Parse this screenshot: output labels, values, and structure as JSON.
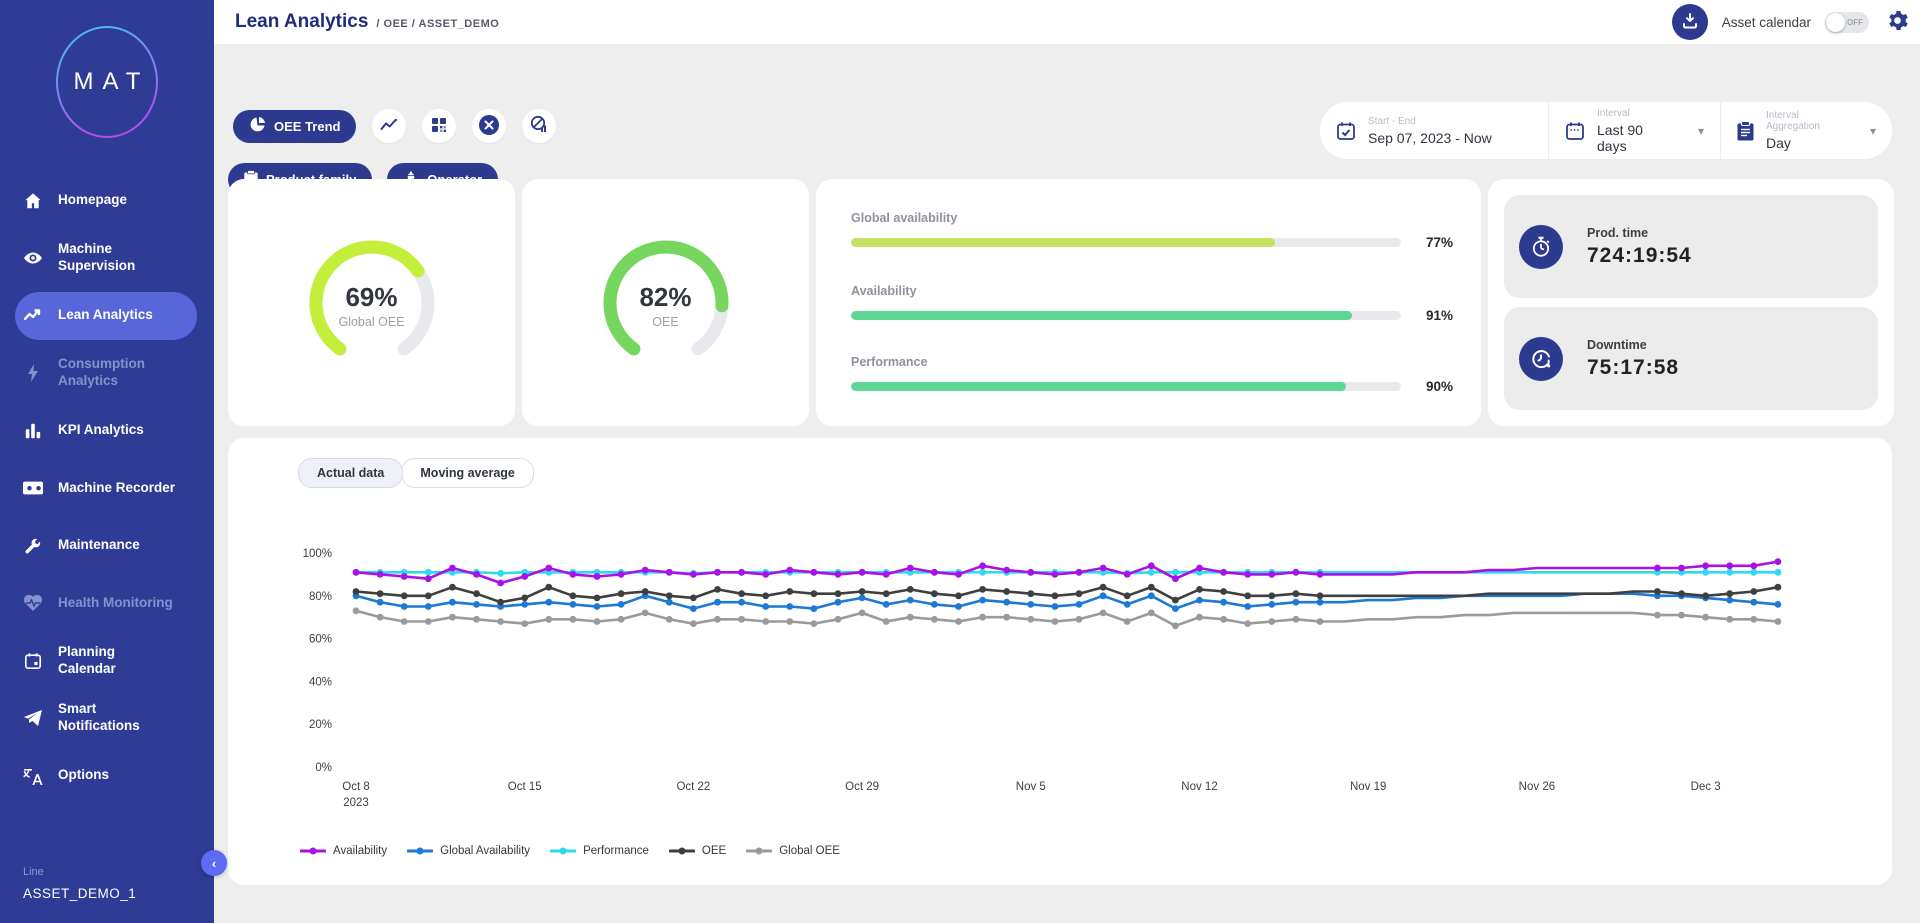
{
  "colors": {
    "sidebar_bg": "#2e3c96",
    "active_item": "#5766d9",
    "accent_navy": "#2c3a90",
    "page_bg": "#eeeeee",
    "collapse_btn": "#5b6cf0",
    "gauge_lime": "#c3ee3a",
    "gauge_green": "#77d65e",
    "gauge_track": "#e8e9ec",
    "bar_lime": "#c3e362",
    "bar_mint": "#5ed792"
  },
  "header": {
    "title": "Lean Analytics",
    "breadcrumb": "/ OEE / ASSET_DEMO",
    "asset_calendar_label": "Asset calendar",
    "asset_calendar_state": "OFF",
    "download_icon": "download-icon",
    "gear_icon": "gear-icon"
  },
  "sidebar": {
    "logo": "MAT",
    "items": [
      {
        "label": "Homepage",
        "icon": "home-icon",
        "state": "normal"
      },
      {
        "label": "Machine Supervision",
        "icon": "eye-icon",
        "state": "normal"
      },
      {
        "label": "Lean Analytics",
        "icon": "trend-icon",
        "state": "active"
      },
      {
        "label": "Consumption Analytics",
        "icon": "bolt-icon",
        "state": "muted"
      },
      {
        "label": "KPI Analytics",
        "icon": "bar-chart-icon",
        "state": "normal"
      },
      {
        "label": "Machine Recorder",
        "icon": "recorder-icon",
        "state": "normal"
      },
      {
        "label": "Maintenance",
        "icon": "wrench-icon",
        "state": "normal"
      },
      {
        "label": "Health Monitoring",
        "icon": "heart-pulse-icon",
        "state": "muted"
      },
      {
        "label": "Planning Calendar",
        "icon": "calendar-icon",
        "state": "normal"
      },
      {
        "label": "Smart Notifications",
        "icon": "send-icon",
        "state": "normal"
      },
      {
        "label": "Options",
        "icon": "translate-icon",
        "state": "normal"
      }
    ],
    "footer": {
      "line_label": "Line",
      "asset_name": "ASSET_DEMO_1"
    }
  },
  "filters": {
    "primary_button": {
      "label": "OEE Trend",
      "icon": "pie-chart-icon"
    },
    "icon_buttons": [
      {
        "icon": "trend-line-icon"
      },
      {
        "icon": "qr-grid-icon"
      },
      {
        "icon": "clear-circle-icon"
      },
      {
        "icon": "chart-disabled-icon"
      }
    ],
    "secondary_buttons": [
      {
        "label": "Product family",
        "icon": "clipboard-icon"
      },
      {
        "label": "Operator",
        "icon": "operator-icon"
      }
    ],
    "date_range": {
      "label": "Start - End",
      "value": "Sep 07, 2023 - Now",
      "icon": "calendar-check-icon"
    },
    "interval": {
      "label": "Interval",
      "value": "Last 90 days",
      "icon": "calendar-days-icon"
    },
    "aggregation": {
      "label": "Interval Aggregation",
      "value": "Day",
      "icon": "clipboard-list-icon"
    }
  },
  "kpis": {
    "gauges": [
      {
        "value": "69%",
        "pct": 69,
        "label": "Global OEE",
        "color": "#c3ee3a"
      },
      {
        "value": "82%",
        "pct": 82,
        "label": "OEE",
        "color": "#77d65e"
      }
    ],
    "bars": [
      {
        "label": "Global availability",
        "pct": 77,
        "display": "77%",
        "color": "#c3e362"
      },
      {
        "label": "Availability",
        "pct": 91,
        "display": "91%",
        "color": "#5ed792"
      },
      {
        "label": "Performance",
        "pct": 90,
        "display": "90%",
        "color": "#5ed792"
      }
    ],
    "times": [
      {
        "label": "Prod. time",
        "value": "724:19:54",
        "icon": "stopwatch-icon"
      },
      {
        "label": "Downtime",
        "value": "75:17:58",
        "icon": "downtime-clock-icon"
      }
    ]
  },
  "chart": {
    "tabs": [
      {
        "label": "Actual data",
        "active": true
      },
      {
        "label": "Moving average",
        "active": false
      }
    ]
  },
  "chart_data": {
    "type": "line",
    "x_unit": "day",
    "x_start": "Oct 8, 2023",
    "ylim": [
      0,
      100
    ],
    "y_ticks": [
      "0%",
      "20%",
      "40%",
      "60%",
      "80%",
      "100%"
    ],
    "grid": false,
    "legend_position": "bottom-left",
    "x_ticks": [
      {
        "index": 0,
        "label": "Oct 8",
        "sublabel": "2023"
      },
      {
        "index": 7,
        "label": "Oct 15"
      },
      {
        "index": 14,
        "label": "Oct 22"
      },
      {
        "index": 21,
        "label": "Oct 29"
      },
      {
        "index": 28,
        "label": "Nov 5"
      },
      {
        "index": 35,
        "label": "Nov 12"
      },
      {
        "index": 42,
        "label": "Nov 19"
      },
      {
        "index": 49,
        "label": "Nov 26"
      },
      {
        "index": 56,
        "label": "Dec 3"
      }
    ],
    "marker_hidden_range": {
      "from": 41,
      "to": 53
    },
    "series": [
      {
        "name": "Availability",
        "color": "#a911e8",
        "values": [
          91,
          90,
          89,
          88,
          93,
          90,
          86,
          89,
          93,
          90,
          89,
          90,
          92,
          91,
          90,
          91,
          91,
          90,
          92,
          91,
          90,
          91,
          90,
          93,
          91,
          90,
          94,
          92,
          91,
          90,
          91,
          93,
          90,
          94,
          88,
          93,
          91,
          90,
          90,
          91,
          90,
          90,
          90,
          90,
          91,
          91,
          91,
          92,
          92,
          93,
          93,
          93,
          93,
          93,
          93,
          93,
          94,
          94,
          94,
          96
        ]
      },
      {
        "name": "Global Availability",
        "color": "#1d79d4",
        "values": [
          80,
          77,
          75,
          75,
          77,
          76,
          75,
          76,
          77,
          76,
          75,
          76,
          80,
          77,
          74,
          77,
          77,
          75,
          75,
          74,
          77,
          79,
          76,
          78,
          76,
          75,
          78,
          77,
          76,
          75,
          76,
          80,
          76,
          80,
          74,
          78,
          77,
          75,
          76,
          77,
          77,
          77,
          78,
          78,
          79,
          79,
          80,
          80,
          80,
          80,
          80,
          81,
          81,
          81,
          80,
          80,
          79,
          78,
          77,
          76
        ]
      },
      {
        "name": "Performance",
        "color": "#2fd9f0",
        "values": [
          91,
          91,
          91,
          91,
          91,
          91,
          90.5,
          91,
          91,
          91,
          91,
          91,
          91,
          91,
          90.5,
          91,
          91,
          91,
          91,
          91,
          91,
          91,
          91,
          91,
          91,
          91,
          91,
          91,
          91,
          91,
          91,
          91,
          90.5,
          91,
          91,
          91,
          91,
          91,
          91,
          91,
          91,
          91,
          91,
          91,
          91,
          91,
          91,
          91,
          91,
          91,
          91,
          91,
          91,
          91,
          91,
          91,
          91,
          91,
          91,
          91
        ]
      },
      {
        "name": "OEE",
        "color": "#3f3f3f",
        "values": [
          82,
          81,
          80,
          80,
          84,
          81,
          77,
          79,
          84,
          80,
          79,
          81,
          82,
          80,
          79,
          83,
          81,
          80,
          82,
          81,
          81,
          82,
          81,
          83,
          81,
          80,
          83,
          82,
          81,
          80,
          81,
          84,
          80,
          84,
          78,
          83,
          82,
          80,
          80,
          81,
          80,
          80,
          80,
          80,
          80,
          80,
          80,
          81,
          81,
          81,
          81,
          81,
          81,
          82,
          82,
          81,
          80,
          81,
          82,
          84
        ]
      },
      {
        "name": "Global OEE",
        "color": "#9a9a9a",
        "values": [
          73,
          70,
          68,
          68,
          70,
          69,
          68,
          67,
          69,
          69,
          68,
          69,
          72,
          69,
          67,
          69,
          69,
          68,
          68,
          67,
          69,
          72,
          68,
          70,
          69,
          68,
          70,
          70,
          69,
          68,
          69,
          72,
          68,
          72,
          66,
          70,
          69,
          67,
          68,
          69,
          68,
          68,
          69,
          69,
          70,
          70,
          71,
          71,
          72,
          72,
          72,
          72,
          72,
          72,
          71,
          71,
          70,
          69,
          69,
          68
        ]
      }
    ]
  }
}
